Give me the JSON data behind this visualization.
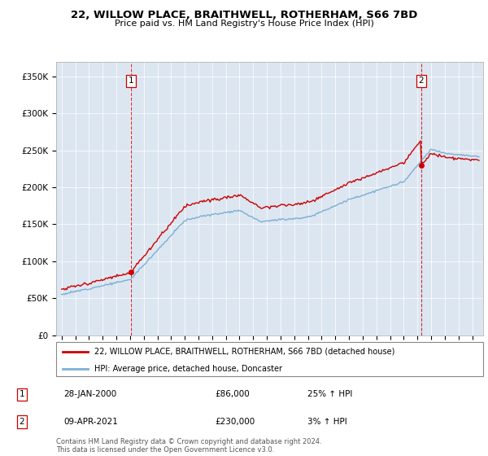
{
  "title": "22, WILLOW PLACE, BRAITHWELL, ROTHERHAM, S66 7BD",
  "subtitle": "Price paid vs. HM Land Registry's House Price Index (HPI)",
  "legend_line1": "22, WILLOW PLACE, BRAITHWELL, ROTHERHAM, S66 7BD (detached house)",
  "legend_line2": "HPI: Average price, detached house, Doncaster",
  "annotation1": {
    "num": "1",
    "date": "28-JAN-2000",
    "price": "£86,000",
    "hpi": "25% ↑ HPI"
  },
  "annotation2": {
    "num": "2",
    "date": "09-APR-2021",
    "price": "£230,000",
    "hpi": "3% ↑ HPI"
  },
  "footer": "Contains HM Land Registry data © Crown copyright and database right 2024.\nThis data is licensed under the Open Government Licence v3.0.",
  "plot_color_red": "#cc0000",
  "plot_color_blue": "#7bafd4",
  "background_color": "#dce6f1",
  "ylim": [
    0,
    370000
  ],
  "yticks": [
    0,
    50000,
    100000,
    150000,
    200000,
    250000,
    300000,
    350000
  ],
  "ytick_labels": [
    "£0",
    "£50K",
    "£100K",
    "£150K",
    "£200K",
    "£250K",
    "£300K",
    "£350K"
  ],
  "sale1_x": 2000.08,
  "sale1_y": 86000,
  "sale2_x": 2021.27,
  "sale2_y": 230000,
  "vline_color": "#cc0000",
  "vline_style": "--",
  "xlim_left": 1994.6,
  "xlim_right": 2025.8
}
